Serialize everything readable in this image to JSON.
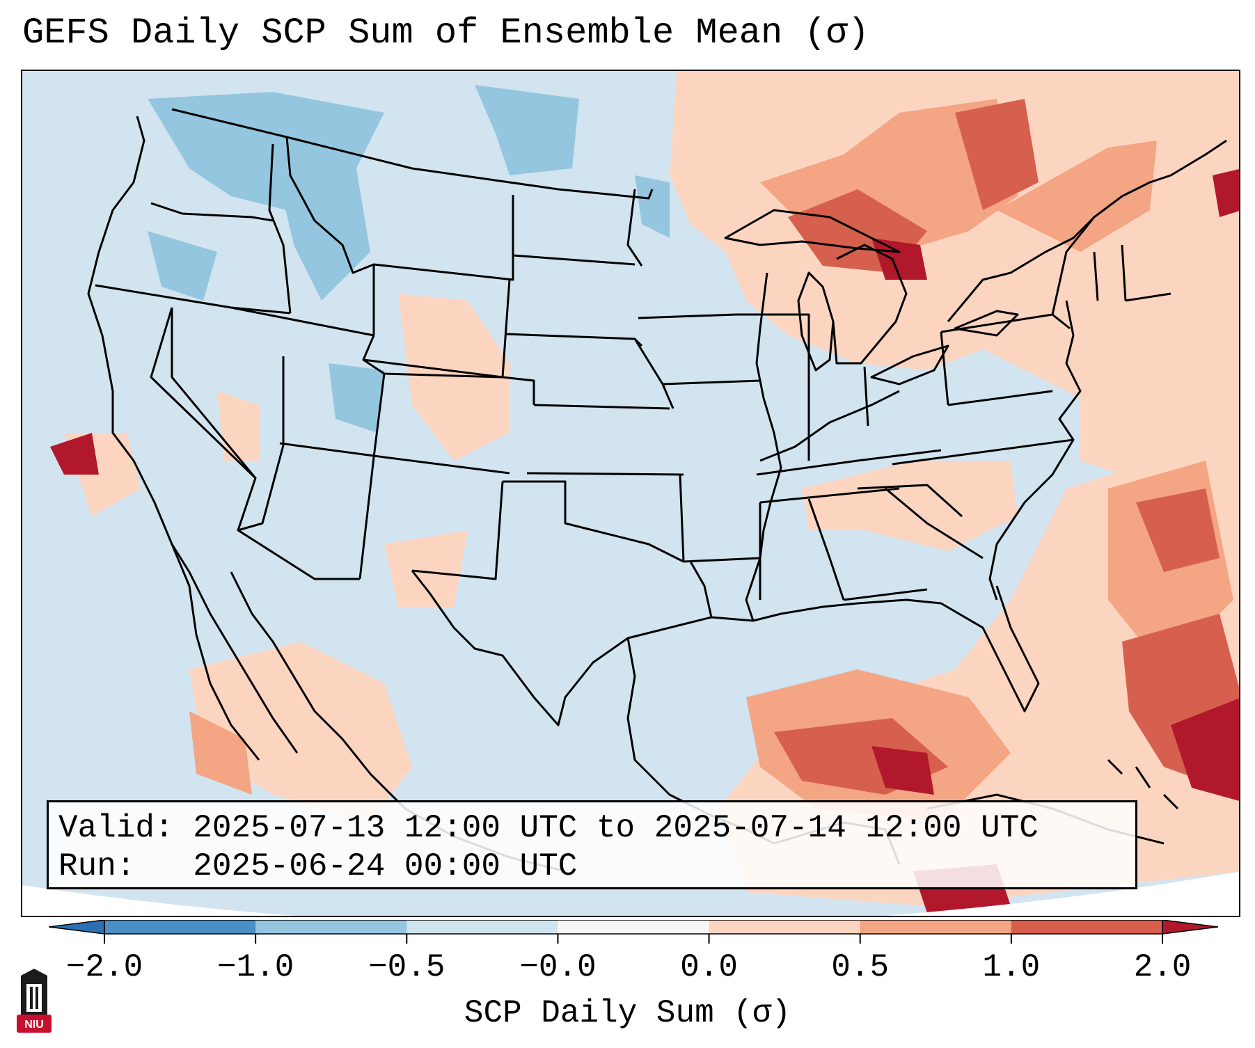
{
  "title": "GEFS Daily SCP Sum of Ensemble Mean (σ)",
  "info": {
    "valid_label": "Valid:",
    "valid_value": "2025-07-13 12:00 UTC to 2025-07-14 12:00 UTC",
    "run_label": "Run:",
    "run_value": "2025-06-24 00:00 UTC"
  },
  "colorbar": {
    "label": "SCP Daily Sum (σ)",
    "ticks": [
      "−2.0",
      "−1.0",
      "−0.5",
      "−0.0",
      "0.0",
      "0.5",
      "1.0",
      "2.0"
    ],
    "bins": [
      {
        "color": "#4a8fc7"
      },
      {
        "color": "#94c6df"
      },
      {
        "color": "#d0e4f0"
      },
      {
        "color": "#f7f7f7"
      },
      {
        "color": "#fcd5c1"
      },
      {
        "color": "#f3a584"
      },
      {
        "color": "#d6604d"
      }
    ],
    "extend_low_color": "#2c70b1",
    "extend_high_color": "#b2182b"
  },
  "palette": {
    "background_field": "#d2e4f0",
    "strong_negative": "#94c6df",
    "weak_positive": "#fcd5c1",
    "moderate_positive": "#f3a584",
    "strong_positive": "#d6604d",
    "extreme_positive": "#b2182b",
    "outside_domain": "#ffffff"
  },
  "logo": {
    "text": "NIU",
    "color": "#c8102e"
  }
}
